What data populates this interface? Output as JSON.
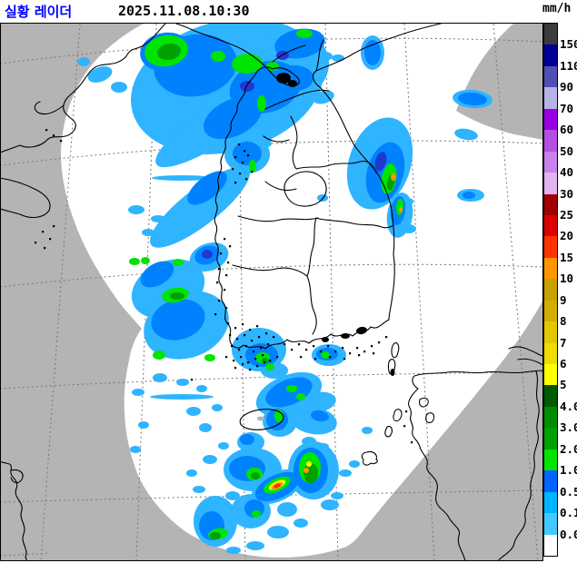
{
  "header": {
    "title": "실황 레이더",
    "timestamp": "2025.11.08.10:30"
  },
  "legend": {
    "unit": "mm/h",
    "labels": [
      "150",
      "110",
      "90",
      "70",
      "60",
      "50",
      "40",
      "30",
      "25",
      "20",
      "15",
      "10",
      "9",
      "8",
      "7",
      "6",
      "5",
      "4.0",
      "3.0",
      "2.0",
      "1.0",
      "0.5",
      "0.1",
      "0.0"
    ],
    "colors": [
      "#3c3c3c",
      "#000096",
      "#5050b4",
      "#b4b4e6",
      "#9a00e6",
      "#b450e1",
      "#c882eb",
      "#e1b4f0",
      "#a00000",
      "#dc0000",
      "#ff3200",
      "#ff9600",
      "#c8a000",
      "#d2ae00",
      "#e1c800",
      "#f0dc00",
      "#ffff00",
      "#005a00",
      "#008c00",
      "#00a000",
      "#00e400",
      "#0064ff",
      "#00b4ff",
      "#41c8ff",
      "#ffffff"
    ]
  },
  "map": {
    "out_of_range_color": "#b4b4b4",
    "coverage_color": "#ffffff",
    "coast_color": "#000000",
    "grid_color": "#787878"
  },
  "chart_data": {
    "type": "weather-radar-composite",
    "palette": {
      "b1": "#2fb4ff",
      "b2": "#0082ff",
      "b4": "#2038d2",
      "g1": "#00e400",
      "g2": "#00a000",
      "y": "#ffff00",
      "o": "#ff9600",
      "r": "#ff3200"
    },
    "echoes": [
      [
        "b1",
        250,
        95,
        108,
        72,
        -15
      ],
      [
        "b1",
        322,
        70,
        40,
        38,
        0
      ],
      [
        "b1",
        235,
        140,
        75,
        20,
        -33
      ],
      [
        "b1",
        220,
        228,
        68,
        20,
        -38
      ],
      [
        "b1",
        185,
        318,
        42,
        30,
        -25
      ],
      [
        "b1",
        205,
        358,
        48,
        36,
        -20
      ],
      [
        "b1",
        230,
        283,
        22,
        15,
        -20
      ],
      [
        "b1",
        110,
        82,
        14,
        8,
        -20
      ],
      [
        "b1",
        131,
        96,
        9,
        6,
        0
      ],
      [
        "b1",
        92,
        68,
        7,
        5,
        0
      ],
      [
        "b1",
        150,
        231,
        9,
        5,
        0
      ],
      [
        "b1",
        174,
        241,
        8,
        4,
        0
      ],
      [
        "b1",
        163,
        256,
        7,
        4,
        0
      ],
      [
        "b1",
        200,
        196,
        33,
        3,
        0
      ],
      [
        "b1",
        200,
        437,
        35,
        3,
        0
      ],
      [
        "b1",
        310,
        126,
        11,
        6,
        -20
      ],
      [
        "b1",
        297,
        141,
        8,
        5,
        0
      ],
      [
        "b1",
        290,
        158,
        9,
        5,
        0
      ],
      [
        "b1",
        272,
        170,
        25,
        21,
        0
      ],
      [
        "b1",
        410,
        58,
        13,
        19,
        0
      ],
      [
        "b1",
        520,
        109,
        22,
        10,
        5
      ],
      [
        "b1",
        513,
        148,
        13,
        6,
        10
      ],
      [
        "b1",
        518,
        215,
        15,
        7,
        0
      ],
      [
        "b1",
        356,
        107,
        12,
        7,
        -15
      ],
      [
        "b1",
        372,
        64,
        7,
        4,
        0
      ],
      [
        "b1",
        358,
        62,
        8,
        5,
        0
      ],
      [
        "b1",
        418,
        180,
        34,
        52,
        18
      ],
      [
        "b1",
        440,
        237,
        14,
        25,
        8
      ],
      [
        "b1",
        450,
        252,
        8,
        5,
        0
      ],
      [
        "b1",
        449,
        222,
        6,
        4,
        0
      ],
      [
        "b1",
        355,
        218,
        6,
        4,
        0
      ],
      [
        "b1",
        285,
        385,
        30,
        24,
        0
      ],
      [
        "b1",
        302,
        408,
        15,
        9,
        0
      ],
      [
        "b1",
        362,
        391,
        19,
        12,
        0
      ],
      [
        "b1",
        318,
        434,
        38,
        21,
        -22
      ],
      [
        "b1",
        350,
        443,
        20,
        11,
        -10
      ],
      [
        "b1",
        308,
        464,
        19,
        17,
        0
      ],
      [
        "b1",
        276,
        487,
        15,
        11,
        0
      ],
      [
        "b1",
        345,
        463,
        26,
        15,
        10
      ],
      [
        "b1",
        278,
        517,
        32,
        24,
        0
      ],
      [
        "b1",
        345,
        518,
        28,
        32,
        0
      ],
      [
        "b1",
        305,
        536,
        30,
        16,
        -25
      ],
      [
        "b1",
        237,
        574,
        24,
        28,
        0
      ],
      [
        "b1",
        276,
        563,
        22,
        19,
        0
      ],
      [
        "b1",
        363,
        556,
        10,
        6,
        0
      ],
      [
        "b1",
        371,
        546,
        7,
        4,
        0
      ],
      [
        "b1",
        316,
        561,
        11,
        8,
        0
      ],
      [
        "b1",
        306,
        586,
        12,
        7,
        0
      ],
      [
        "b1",
        331,
        576,
        8,
        5,
        0
      ],
      [
        "b1",
        256,
        546,
        8,
        5,
        0
      ],
      [
        "b1",
        219,
        539,
        7,
        4,
        0
      ],
      [
        "b1",
        211,
        521,
        6,
        4,
        0
      ],
      [
        "b1",
        231,
        506,
        8,
        5,
        0
      ],
      [
        "b1",
        246,
        491,
        6,
        4,
        0
      ],
      [
        "b1",
        226,
        471,
        7,
        5,
        0
      ],
      [
        "b1",
        213,
        453,
        8,
        5,
        0
      ],
      [
        "b1",
        239,
        449,
        6,
        4,
        0
      ],
      [
        "b1",
        152,
        432,
        7,
        4,
        0
      ],
      [
        "b1",
        158,
        468,
        6,
        4,
        0
      ],
      [
        "b1",
        149,
        495,
        6,
        4,
        0
      ],
      [
        "b1",
        176,
        416,
        8,
        5,
        0
      ],
      [
        "b1",
        201,
        421,
        7,
        4,
        0
      ],
      [
        "b1",
        222,
        428,
        6,
        4,
        0
      ],
      [
        "b1",
        281,
        601,
        10,
        5,
        0
      ],
      [
        "b1",
        257,
        606,
        8,
        4,
        0
      ],
      [
        "b1",
        340,
        486,
        8,
        5,
        0
      ],
      [
        "b1",
        356,
        492,
        6,
        4,
        0
      ],
      [
        "b1",
        390,
        511,
        6,
        4,
        0
      ],
      [
        "b1",
        380,
        521,
        7,
        4,
        0
      ],
      [
        "b1",
        404,
        474,
        6,
        4,
        0
      ],
      [
        "b2",
        215,
        72,
        46,
        34,
        -10
      ],
      [
        "b2",
        292,
        96,
        40,
        28,
        -15
      ],
      [
        "b2",
        256,
        130,
        34,
        20,
        -25
      ],
      [
        "b2",
        330,
        48,
        28,
        16,
        -10
      ],
      [
        "b2",
        325,
        86,
        20,
        14,
        0
      ],
      [
        "b2",
        182,
        57,
        28,
        21,
        -10
      ],
      [
        "b2",
        228,
        207,
        26,
        12,
        -38
      ],
      [
        "b2",
        196,
        352,
        30,
        22,
        -15
      ],
      [
        "b2",
        173,
        302,
        20,
        12,
        -30
      ],
      [
        "b2",
        228,
        281,
        14,
        10,
        -20
      ],
      [
        "b2",
        272,
        169,
        16,
        13,
        0
      ],
      [
        "b2",
        410,
        58,
        9,
        14,
        0
      ],
      [
        "b2",
        520,
        109,
        16,
        7,
        5
      ],
      [
        "b2",
        516,
        215,
        7,
        4,
        0
      ],
      [
        "b2",
        424,
        190,
        20,
        34,
        15
      ],
      [
        "b2",
        438,
        232,
        8,
        16,
        8
      ],
      [
        "b2",
        288,
        391,
        18,
        13,
        0
      ],
      [
        "b2",
        360,
        390,
        12,
        7,
        0
      ],
      [
        "b2",
        318,
        432,
        27,
        14,
        -22
      ],
      [
        "b2",
        305,
        462,
        12,
        12,
        0
      ],
      [
        "b2",
        272,
        484,
        8,
        6,
        0
      ],
      [
        "b2",
        352,
        458,
        10,
        6,
        10
      ],
      [
        "b2",
        272,
        516,
        20,
        14,
        0
      ],
      [
        "b2",
        342,
        518,
        19,
        25,
        0
      ],
      [
        "b2",
        305,
        536,
        26,
        13,
        -25
      ],
      [
        "b2",
        233,
        579,
        14,
        16,
        0
      ],
      [
        "b2",
        280,
        560,
        11,
        10,
        0
      ],
      [
        "b4",
        228,
        280,
        6,
        5,
        0
      ],
      [
        "b4",
        419,
        178,
        6,
        11,
        15
      ],
      [
        "b4",
        272,
        95,
        8,
        6,
        0
      ],
      [
        "b4",
        311,
        61,
        7,
        5,
        0
      ],
      [
        "b4",
        342,
        520,
        6,
        9,
        0
      ],
      [
        "g1",
        183,
        56,
        24,
        17,
        -10
      ],
      [
        "g1",
        272,
        70,
        17,
        11,
        -5
      ],
      [
        "g1",
        240,
        62,
        8,
        6,
        0
      ],
      [
        "g1",
        300,
        73,
        7,
        5,
        0
      ],
      [
        "g1",
        288,
        114,
        5,
        9,
        0
      ],
      [
        "g1",
        335,
        37,
        9,
        5,
        0
      ],
      [
        "g1",
        193,
        325,
        15,
        8,
        -10
      ],
      [
        "g1",
        148,
        288,
        6,
        4,
        0
      ],
      [
        "g1",
        160,
        287,
        5,
        4,
        0
      ],
      [
        "g1",
        196,
        289,
        6,
        4,
        0
      ],
      [
        "g1",
        175,
        391,
        7,
        5,
        0
      ],
      [
        "g1",
        231,
        394,
        6,
        4,
        0
      ],
      [
        "g1",
        278,
        183,
        4,
        7,
        0
      ],
      [
        "g1",
        428,
        197,
        8,
        17,
        10
      ],
      [
        "g1",
        440,
        228,
        4,
        9,
        5
      ],
      [
        "g1",
        289,
        394,
        8,
        6,
        0
      ],
      [
        "g1",
        297,
        404,
        5,
        4,
        0
      ],
      [
        "g1",
        358,
        391,
        5,
        4,
        0
      ],
      [
        "g1",
        321,
        428,
        6,
        4,
        0
      ],
      [
        "g1",
        331,
        437,
        5,
        4,
        0
      ],
      [
        "g1",
        307,
        458,
        5,
        7,
        0
      ],
      [
        "g1",
        280,
        522,
        9,
        7,
        0
      ],
      [
        "g1",
        305,
        534,
        16,
        7,
        -25
      ],
      [
        "g1",
        341,
        515,
        12,
        17,
        0
      ],
      [
        "g1",
        240,
        588,
        11,
        6,
        -10
      ],
      [
        "g1",
        282,
        566,
        5,
        4,
        0
      ],
      [
        "g2",
        186,
        57,
        13,
        9,
        -10
      ],
      [
        "g2",
        195,
        326,
        8,
        4,
        0
      ],
      [
        "g2",
        430,
        201,
        4,
        9,
        10
      ],
      [
        "g2",
        292,
        397,
        4,
        3,
        0
      ],
      [
        "g2",
        342,
        521,
        8,
        11,
        0
      ],
      [
        "g2",
        237,
        590,
        6,
        4,
        0
      ],
      [
        "g2",
        281,
        524,
        5,
        4,
        0
      ],
      [
        "y",
        305,
        534,
        10,
        4,
        -25
      ],
      [
        "y",
        340,
        511,
        3,
        3,
        0
      ],
      [
        "o",
        305,
        535,
        7,
        3,
        -25
      ],
      [
        "o",
        433,
        195,
        3,
        4,
        0
      ],
      [
        "o",
        441,
        231,
        2,
        3,
        0
      ],
      [
        "o",
        337,
        518,
        3,
        3,
        0
      ],
      [
        "r",
        305,
        535,
        4,
        2,
        -25
      ]
    ]
  }
}
